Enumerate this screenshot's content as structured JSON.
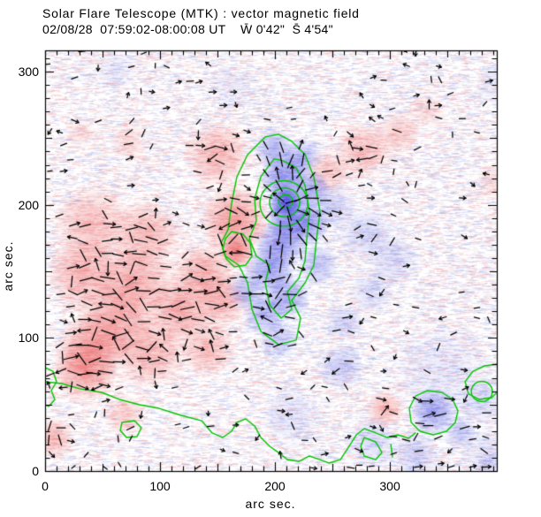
{
  "title": {
    "line1": "Solar Flare Telescope (MTK) : vector magnetic field",
    "line2": "02/08/28  07:59:02-08:00:08 UT    W̄ 0'42\"  S̄ 4'54\""
  },
  "axes": {
    "xlabel": "arc sec.",
    "ylabel": "arc sec.",
    "x_tick_labels": [
      "0",
      "100",
      "200",
      "300"
    ],
    "y_tick_labels": [
      "0",
      "100",
      "200",
      "300"
    ]
  },
  "chart_data": {
    "type": "heatmap",
    "title": "Solar Flare Telescope (MTK) : vector magnetic field",
    "subtitle": "02/08/28  07:59:02-08:00:08 UT    W̄ 0'42\"  S̄ 4'54\"",
    "xlabel": "arc sec.",
    "ylabel": "arc sec.",
    "xlim": [
      0,
      393
    ],
    "ylim": [
      0,
      316
    ],
    "x_ticks": [
      0,
      100,
      200,
      300
    ],
    "y_ticks": [
      0,
      100,
      200,
      300
    ],
    "minor_tick_step": 10,
    "colors": {
      "positive_polarity": "#e84848",
      "negative_polarity": "#3232dc",
      "contour": "#00c300",
      "vectors": "#000000",
      "frame": "#000000",
      "noise_pink": "#f0aab0",
      "noise_blue": "#aab4ea",
      "background": "#ffffff"
    },
    "polarity_blobs": {
      "units": "arcsec [x, y, radius, amplitude]",
      "positive": [
        [
          149.2,
          237.7,
          29,
          0.45
        ],
        [
          164.6,
          187.9,
          31,
          0.65
        ],
        [
          166.9,
          164.7,
          15,
          0.85
        ],
        [
          137.7,
          148.1,
          27,
          0.5
        ],
        [
          87.7,
          177.9,
          31,
          0.45
        ],
        [
          41.5,
          184.6,
          35,
          0.4
        ],
        [
          33.8,
          148.1,
          32,
          0.5
        ],
        [
          76.2,
          141.4,
          35,
          0.55
        ],
        [
          118.5,
          121.5,
          31,
          0.55
        ],
        [
          60.8,
          111.6,
          35,
          0.55
        ],
        [
          153.1,
          128.2,
          23,
          0.5
        ],
        [
          41.5,
          91.6,
          32,
          0.55
        ],
        [
          91.5,
          89.6,
          31,
          0.5
        ],
        [
          141.5,
          91.6,
          25,
          0.4
        ],
        [
          33.8,
          76.4,
          29,
          0.6
        ],
        [
          68.5,
          41.8,
          19,
          0.3
        ],
        [
          6.9,
          25.2,
          19,
          0.45
        ],
        [
          72.3,
          247.7,
          17,
          0.25
        ],
        [
          30.0,
          254.3,
          15,
          0.18
        ],
        [
          276.2,
          241.0,
          25,
          0.4
        ],
        [
          245.4,
          224.4,
          20,
          0.35
        ],
        [
          306.9,
          254.3,
          20,
          0.3
        ],
        [
          333.8,
          270.9,
          15,
          0.2
        ],
        [
          391.5,
          217.8,
          17,
          0.2
        ],
        [
          295.4,
          47.1,
          17,
          0.45
        ]
      ],
      "negative": [
        [
          209.2,
          202.5,
          15,
          0.95
        ],
        [
          208.5,
          221.1,
          22,
          0.65
        ],
        [
          214.6,
          191.2,
          23,
          0.7
        ],
        [
          205.4,
          171.3,
          23,
          0.6
        ],
        [
          195.4,
          151.4,
          22,
          0.55
        ],
        [
          210.8,
          131.5,
          20,
          0.5
        ],
        [
          191.5,
          118.2,
          20,
          0.45
        ],
        [
          174.6,
          134.8,
          17,
          0.4
        ],
        [
          230.0,
          184.6,
          18,
          0.5
        ],
        [
          231.5,
          211.2,
          17,
          0.5
        ],
        [
          199.2,
          242.4,
          18,
          0.45
        ],
        [
          223.8,
          235.7,
          17,
          0.45
        ],
        [
          249.2,
          197.9,
          22,
          0.25
        ],
        [
          280.0,
          177.9,
          25,
          0.22
        ],
        [
          303.1,
          158.0,
          23,
          0.2
        ],
        [
          283.8,
          134.8,
          20,
          0.2
        ],
        [
          260.8,
          111.6,
          17,
          0.25
        ],
        [
          256.9,
          78.4,
          20,
          0.3
        ],
        [
          237.7,
          154.7,
          18,
          0.35
        ],
        [
          203.1,
          98.3,
          18,
          0.3
        ],
        [
          337.7,
          45.2,
          20,
          0.55
        ],
        [
          360.8,
          28.6,
          15,
          0.3
        ],
        [
          214.6,
          41.8,
          27,
          0.15
        ],
        [
          283.8,
          21.9,
          23,
          0.2
        ],
        [
          322.3,
          12.0,
          22,
          0.25
        ],
        [
          380.0,
          51.8,
          22,
          0.18
        ],
        [
          391.5,
          290.8,
          19,
          0.12
        ],
        [
          60.8,
          300.8,
          19,
          0.1
        ],
        [
          160.8,
          287.5,
          19,
          0.1
        ],
        [
          345.4,
          75.0,
          46,
          0.12
        ],
        [
          391.5,
          8.6,
          31,
          0.2
        ]
      ]
    },
    "contours": {
      "rings": [
        [
          209.2,
          202.5,
          6.2
        ],
        [
          208.4,
          201.8,
          13.1
        ],
        [
          207.7,
          201.0,
          20.8
        ],
        [
          380.0,
          59.8,
          9.2
        ]
      ],
      "paths": [
        {
          "closed": true,
          "pts": [
            [
              191.5,
              251
            ],
            [
              176.2,
              237.7
            ],
            [
              166.9,
              221.1
            ],
            [
              162.3,
              201.2
            ],
            [
              159.2,
              181.3
            ],
            [
              153.1,
              171.3
            ],
            [
              156.9,
              161.4
            ],
            [
              168.5,
              154.7
            ],
            [
              176.2,
              141.4
            ],
            [
              180,
              121.5
            ],
            [
              187.7,
              104.9
            ],
            [
              203.1,
              95
            ],
            [
              218.5,
              98.3
            ],
            [
              222.3,
              114.9
            ],
            [
              214.6,
              128.2
            ],
            [
              226.2,
              141.4
            ],
            [
              233.8,
              154.7
            ],
            [
              236.2,
              174.6
            ],
            [
              239.2,
              194.6
            ],
            [
              233.8,
              221.1
            ],
            [
              226.2,
              237.7
            ],
            [
              214.6,
              247.7
            ],
            [
              203.1,
              253
            ]
          ]
        },
        {
          "closed": true,
          "pts": [
            [
              199.2,
              234.4
            ],
            [
              187.7,
              221.1
            ],
            [
              182.3,
              204.5
            ],
            [
              183.8,
              187.9
            ],
            [
              177.7,
              174.6
            ],
            [
              183.8,
              161.4
            ],
            [
              195.4,
              154.7
            ],
            [
              191.5,
              141.4
            ],
            [
              195.4,
              124.8
            ],
            [
              205.4,
              114.9
            ],
            [
              214.6,
              121.5
            ],
            [
              210.8,
              134.8
            ],
            [
              220.8,
              144.8
            ],
            [
              226.2,
              158
            ],
            [
              227.7,
              174.6
            ],
            [
              230,
              194.6
            ],
            [
              226.2,
              214.5
            ],
            [
              218.5,
              227.8
            ],
            [
              206.9,
              233.1
            ]
          ]
        },
        {
          "closed": true,
          "pts": [
            [
              156.9,
              174.6
            ],
            [
              162.3,
              179.9
            ],
            [
              172.3,
              177.9
            ],
            [
              178.5,
              171.3
            ],
            [
              180,
              161.4
            ],
            [
              174.6,
              154.7
            ],
            [
              164.6,
              153.4
            ],
            [
              157.7,
              159.4
            ],
            [
              154.6,
              166.7
            ]
          ]
        },
        {
          "closed": false,
          "pts": [
            [
              0,
              67.1
            ],
            [
              14.6,
              65.7
            ],
            [
              30,
              61.8
            ],
            [
              49.2,
              59.1
            ],
            [
              64.6,
              53.8
            ],
            [
              82.3,
              49.8
            ],
            [
              99.2,
              47.1
            ],
            [
              118.5,
              41.8
            ],
            [
              136.2,
              37.8
            ],
            [
              145.4,
              28.6
            ],
            [
              154.6,
              25.2
            ],
            [
              162.3,
              29.9
            ],
            [
              166.9,
              36.5
            ],
            [
              174.6,
              39.2
            ],
            [
              182.3,
              33.9
            ],
            [
              187.7,
              25.2
            ],
            [
              195.4,
              18.6
            ],
            [
              203.1,
              13.9
            ],
            [
              210.8,
              8.6
            ],
            [
              220.8,
              7.3
            ],
            [
              230,
              11.3
            ],
            [
              239.2,
              8.6
            ],
            [
              246.9,
              6
            ],
            [
              256.9,
              8.6
            ],
            [
              264.6,
              18.6
            ],
            [
              270.8,
              27.2
            ],
            [
              277.7,
              31.9
            ],
            [
              287.7,
              28.6
            ],
            [
              297.7,
              25.2
            ],
            [
              306.9,
              27.2
            ],
            [
              316.2,
              24.6
            ],
            [
              322.3,
              28.6
            ]
          ]
        },
        {
          "closed": true,
          "pts": [
            [
              66.9,
              36.5
            ],
            [
              77.7,
              37.8
            ],
            [
              83.8,
              32.5
            ],
            [
              80,
              25.9
            ],
            [
              70.8,
              25.2
            ],
            [
              65.4,
              30.5
            ]
          ]
        },
        {
          "closed": false,
          "pts": [
            [
              0,
              77.7
            ],
            [
              6.9,
              75
            ],
            [
              10,
              67.1
            ],
            [
              5.4,
              60.4
            ],
            [
              8.5,
              53.8
            ],
            [
              3.1,
              48.5
            ],
            [
              0,
              49.8
            ]
          ]
        },
        {
          "closed": true,
          "pts": [
            [
              316.9,
              47.1
            ],
            [
              322.3,
              56.4
            ],
            [
              332.3,
              60.4
            ],
            [
              345.4,
              59.1
            ],
            [
              354.6,
              53.8
            ],
            [
              359.2,
              45.2
            ],
            [
              356.9,
              36.5
            ],
            [
              349.2,
              29.9
            ],
            [
              337.7,
              27.2
            ],
            [
              326.2,
              29.9
            ],
            [
              318.5,
              36.5
            ]
          ]
        },
        {
          "closed": false,
          "pts": [
            [
              393.1,
              80.3
            ],
            [
              382.3,
              79
            ],
            [
              372.3,
              75
            ],
            [
              365.4,
              67.1
            ],
            [
              368.5,
              57.8
            ],
            [
              377.7,
              53.8
            ],
            [
              388.5,
              55.1
            ],
            [
              393.1,
              59.1
            ]
          ]
        },
        {
          "closed": true,
          "pts": [
            [
              277.7,
              25.2
            ],
            [
              287.7,
              21.9
            ],
            [
              293.1,
              13.9
            ],
            [
              287.7,
              8.6
            ],
            [
              277.7,
              11.3
            ],
            [
              274.6,
              18.6
            ]
          ]
        },
        {
          "closed": false,
          "pts": [
            [
              300.8,
              19.9
            ],
            [
              302.3,
              10.6
            ]
          ]
        }
      ]
    },
    "vector_field": {
      "grid_step_arcsec": 10,
      "seed": 20020828,
      "base_density": 0.16,
      "arrow_fraction": 0.4,
      "radial_center": [
        209.2,
        202.5
      ],
      "radial_radius_arcsec": 55
    }
  }
}
